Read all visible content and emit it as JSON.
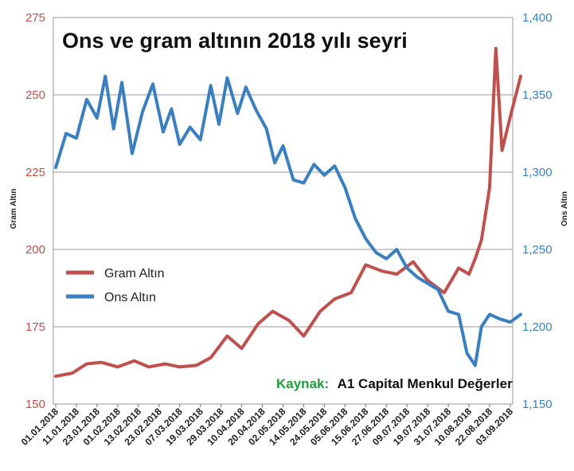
{
  "chart_data": {
    "type": "line",
    "title": "Ons ve gram altının 2018 yılı seyri",
    "ylabel_left": "Gram Altın",
    "ylabel_right": "Ons Altın",
    "ylim_left": [
      150,
      275
    ],
    "ylim_right": [
      1150,
      1400
    ],
    "yticks_left": [
      "150",
      "175",
      "200",
      "225",
      "250",
      "275"
    ],
    "yticks_right": [
      "1,150",
      "1,200",
      "1,250",
      "1,300",
      "1,350",
      "1,400"
    ],
    "xticks": [
      "01.01.2018",
      "11.01.2018",
      "23.01.2018",
      "01.02.2018",
      "13.02.2018",
      "23.02.2018",
      "07.03.2018",
      "19.03.2018",
      "29.03.2018",
      "10.04.2018",
      "20.04.2018",
      "02.05.2018",
      "14.05.2018",
      "24.05.2018",
      "05.06.2018",
      "15.06.2018",
      "27.06.2018",
      "09.07.2018",
      "19.07.2018",
      "31.07.2018",
      "10.08.2018",
      "22.08.2018",
      "03.09.2018"
    ],
    "grid": "horizontal",
    "legend_position": "center-left",
    "source_label": "Kaynak:",
    "source_text": "A1 Capital Menkul Değerler",
    "series": [
      {
        "name": "Gram Altın",
        "axis": "left",
        "color": "#c0504d",
        "x": [
          0,
          0.8,
          1.5,
          2.2,
          3,
          3.8,
          4.5,
          5.3,
          6,
          6.8,
          7.5,
          8.3,
          9,
          9.8,
          10.5,
          11.3,
          12,
          12.8,
          13.5,
          14.3,
          15,
          15.8,
          16.5,
          17.3,
          18,
          18.8,
          19.5,
          20,
          20.3,
          20.6,
          21,
          21.3,
          21.6,
          22,
          22.5
        ],
        "values": [
          159,
          160,
          163,
          163.5,
          162,
          164,
          162,
          163,
          162,
          162.5,
          165,
          172,
          168,
          176,
          180,
          177,
          172,
          180,
          184,
          186,
          195,
          193,
          192,
          196,
          190,
          186,
          194,
          192,
          197,
          203,
          220,
          265,
          232,
          243,
          256
        ]
      },
      {
        "name": "Ons Altın",
        "axis": "right",
        "color": "#3a7fbf",
        "x": [
          0,
          0.5,
          1,
          1.5,
          2,
          2.4,
          2.8,
          3.2,
          3.7,
          4.2,
          4.7,
          5.2,
          5.6,
          6,
          6.5,
          7,
          7.5,
          7.9,
          8.3,
          8.8,
          9.2,
          9.7,
          10.2,
          10.6,
          11,
          11.5,
          12,
          12.5,
          13,
          13.5,
          14,
          14.5,
          15,
          15.5,
          16,
          16.5,
          17,
          17.5,
          18,
          18.5,
          19,
          19.5,
          19.9,
          20.3,
          20.6,
          21,
          21.5,
          22,
          22.5
        ],
        "values": [
          1303,
          1325,
          1322,
          1347,
          1335,
          1362,
          1328,
          1358,
          1312,
          1339,
          1357,
          1326,
          1341,
          1318,
          1329,
          1321,
          1356,
          1331,
          1361,
          1338,
          1355,
          1340,
          1328,
          1306,
          1317,
          1295,
          1293,
          1305,
          1298,
          1304,
          1290,
          1270,
          1257,
          1248,
          1244,
          1250,
          1238,
          1232,
          1228,
          1224,
          1210,
          1208,
          1183,
          1175,
          1200,
          1208,
          1205,
          1203,
          1208
        ]
      }
    ]
  }
}
